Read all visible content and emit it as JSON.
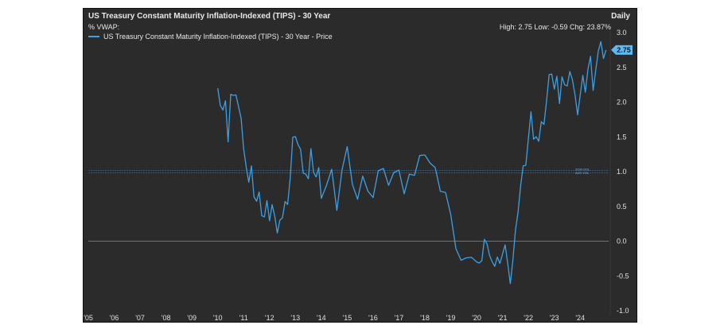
{
  "header": {
    "title": "US Treasury Constant Maturity Inflation-Indexed (TIPS) - 30 Year",
    "units": "%  VWAP:",
    "legend_label": "US Treasury Constant Maturity Inflation-Indexed (TIPS) - 30 Year - Price",
    "frequency": "Daily",
    "stats": "High: 2.75 Low: -0.59 Chg: 23.87%"
  },
  "colors": {
    "background": "#2b2b2b",
    "series": "#3ba0e6",
    "text": "#e8e8e8"
  },
  "chart_data": {
    "type": "line",
    "title": "US Treasury Constant Maturity Inflation-Indexed (TIPS) - 30 Year",
    "x_tick_labels": [
      "'05",
      "'06",
      "'07",
      "'08",
      "'09",
      "'10",
      "'11",
      "'12",
      "'13",
      "'14",
      "'15",
      "'16",
      "'17",
      "'18",
      "'19",
      "'20",
      "'21",
      "'22",
      "'23",
      "'24"
    ],
    "x_tick_positions": [
      2005,
      2006,
      2007,
      2008,
      2009,
      2010,
      2011,
      2012,
      2013,
      2014,
      2015,
      2016,
      2017,
      2018,
      2019,
      2020,
      2021,
      2022,
      2023,
      2024
    ],
    "y_tick_labels": [
      "3.0",
      "2.5",
      "2.0",
      "1.5",
      "1.0",
      "0.5",
      "0.0",
      "-0.5",
      "-1.0"
    ],
    "y_tick_values": [
      3.0,
      2.5,
      2.0,
      1.5,
      1.0,
      0.5,
      0.0,
      -0.5,
      -1.0
    ],
    "xlim": [
      2005,
      2025.1
    ],
    "ylim": [
      -1.0,
      3.0
    ],
    "grid": false,
    "reference_lines": [
      1.0,
      0.0
    ],
    "reference_line_labels": [
      "2024 VOL",
      "AVG VOL"
    ],
    "last_value_label": "2.75",
    "series": [
      {
        "name": "US Treasury Constant Maturity Inflation-Indexed (TIPS) - 30 Year - Price",
        "x": [
          2010.0,
          2010.1,
          2010.2,
          2010.3,
          2010.4,
          2010.5,
          2010.6,
          2010.7,
          2010.8,
          2010.9,
          2011.0,
          2011.1,
          2011.2,
          2011.3,
          2011.4,
          2011.5,
          2011.6,
          2011.7,
          2011.8,
          2011.9,
          2012.0,
          2012.1,
          2012.2,
          2012.3,
          2012.4,
          2012.5,
          2012.6,
          2012.7,
          2012.8,
          2012.9,
          2013.0,
          2013.1,
          2013.2,
          2013.3,
          2013.4,
          2013.5,
          2013.6,
          2013.7,
          2013.8,
          2013.9,
          2014.0,
          2014.2,
          2014.4,
          2014.6,
          2014.8,
          2015.0,
          2015.2,
          2015.4,
          2015.6,
          2015.8,
          2016.0,
          2016.2,
          2016.4,
          2016.6,
          2016.8,
          2017.0,
          2017.2,
          2017.4,
          2017.6,
          2017.8,
          2018.0,
          2018.2,
          2018.4,
          2018.6,
          2018.8,
          2019.0,
          2019.2,
          2019.4,
          2019.6,
          2019.8,
          2020.0,
          2020.1,
          2020.2,
          2020.3,
          2020.4,
          2020.5,
          2020.6,
          2020.7,
          2020.8,
          2020.9,
          2021.0,
          2021.1,
          2021.2,
          2021.3,
          2021.4,
          2021.5,
          2021.6,
          2021.7,
          2021.8,
          2021.9,
          2022.0,
          2022.1,
          2022.2,
          2022.3,
          2022.4,
          2022.5,
          2022.6,
          2022.7,
          2022.8,
          2022.9,
          2023.0,
          2023.1,
          2023.2,
          2023.3,
          2023.4,
          2023.5,
          2023.6,
          2023.7,
          2023.8,
          2023.9,
          2024.0,
          2024.1,
          2024.2,
          2024.3,
          2024.4,
          2024.5,
          2024.6,
          2024.7,
          2024.8,
          2024.9,
          2025.0
        ],
        "values": [
          2.2,
          2.0,
          1.85,
          1.9,
          1.5,
          2.1,
          2.0,
          2.2,
          1.95,
          1.7,
          1.45,
          1.1,
          0.8,
          0.95,
          0.7,
          0.55,
          0.6,
          0.45,
          0.35,
          0.5,
          0.4,
          0.55,
          0.3,
          0.25,
          0.35,
          0.3,
          0.45,
          0.6,
          0.9,
          1.4,
          1.6,
          1.4,
          1.25,
          1.1,
          1.0,
          0.85,
          1.2,
          1.05,
          0.9,
          0.95,
          0.7,
          0.8,
          0.95,
          0.55,
          1.05,
          1.3,
          0.95,
          0.65,
          0.9,
          0.6,
          0.7,
          1.0,
          0.95,
          0.9,
          1.0,
          0.95,
          0.8,
          1.0,
          0.9,
          1.1,
          1.3,
          1.1,
          0.95,
          0.8,
          0.7,
          0.3,
          0.0,
          -0.25,
          -0.3,
          -0.1,
          -0.25,
          -0.35,
          -0.4,
          0.1,
          -0.05,
          -0.3,
          -0.2,
          -0.35,
          -0.3,
          -0.2,
          -0.15,
          -0.1,
          -0.45,
          -0.55,
          -0.3,
          0.05,
          0.5,
          0.8,
          1.0,
          1.2,
          1.5,
          1.8,
          1.6,
          1.55,
          1.4,
          1.6,
          1.75,
          2.0,
          2.3,
          2.5,
          2.2,
          2.3,
          2.1,
          2.4,
          2.2,
          2.1,
          2.5,
          2.3,
          2.0,
          1.9,
          2.1,
          2.3,
          2.25,
          2.5,
          2.6,
          2.3,
          2.5,
          2.7,
          2.75,
          2.7,
          2.75
        ]
      }
    ]
  }
}
